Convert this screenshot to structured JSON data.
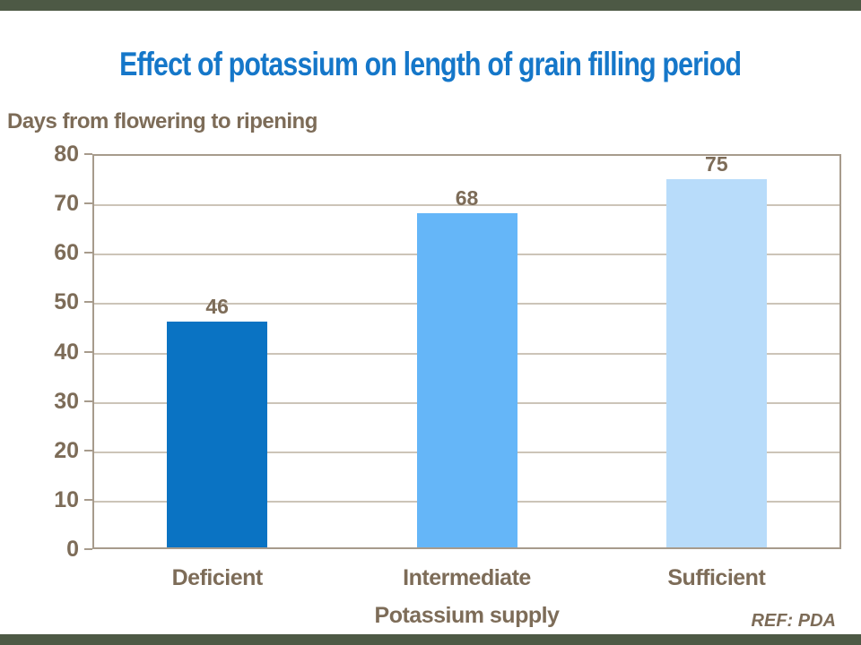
{
  "slide": {
    "background": "#FFFFFF",
    "accent_color": "#4D5945"
  },
  "title": {
    "text": "Effect of potassium on length of grain filling period",
    "color": "#1577C9"
  },
  "chart_data": {
    "type": "bar",
    "title": "Effect of potassium on length of grain filling period",
    "ylabel": "Days from flowering to ripening",
    "xlabel": "Potassium supply",
    "categories": [
      "Deficient",
      "Intermediate",
      "Sufficient"
    ],
    "values": [
      46,
      68,
      75
    ],
    "value_labels": [
      "46",
      "68",
      "75"
    ],
    "bar_colors": [
      "#0A73C3",
      "#65B6F8",
      "#B8DCFA"
    ],
    "ylim": [
      0,
      80
    ],
    "ytick_step": 10,
    "yticks": [
      "0",
      "10",
      "20",
      "30",
      "40",
      "50",
      "60",
      "70",
      "80"
    ],
    "grid": true,
    "legend_position": "none",
    "text_color": "#7D6C58",
    "axis_color": "#A79B8C",
    "grid_color": "#CCC4B8"
  },
  "footer": {
    "ref": "REF: PDA"
  }
}
